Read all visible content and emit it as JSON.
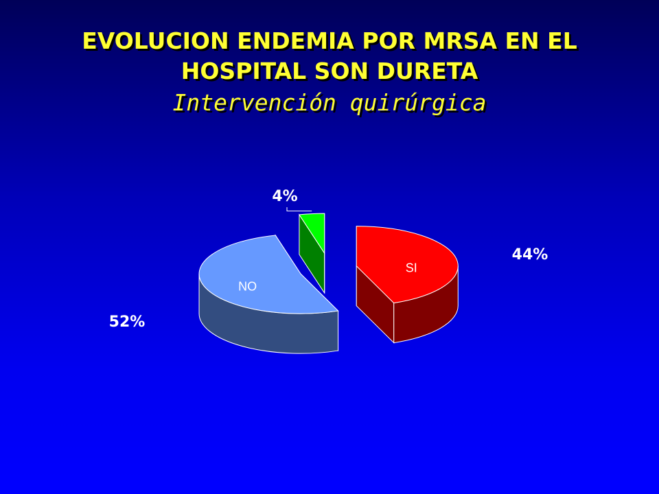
{
  "chart_data": {
    "type": "pie3d",
    "title": "EVOLUCION ENDEMIA POR MRSA EN EL HOSPITAL SON DURETA",
    "subtitle": "Intervención quirúrgica",
    "categories": [
      "SI",
      "NO",
      null
    ],
    "values": [
      44,
      52,
      4
    ],
    "value_labels": [
      "44%",
      "52%",
      "4%"
    ],
    "colors": [
      "#ff0000",
      "#6699ff",
      "#00ff00"
    ]
  }
}
